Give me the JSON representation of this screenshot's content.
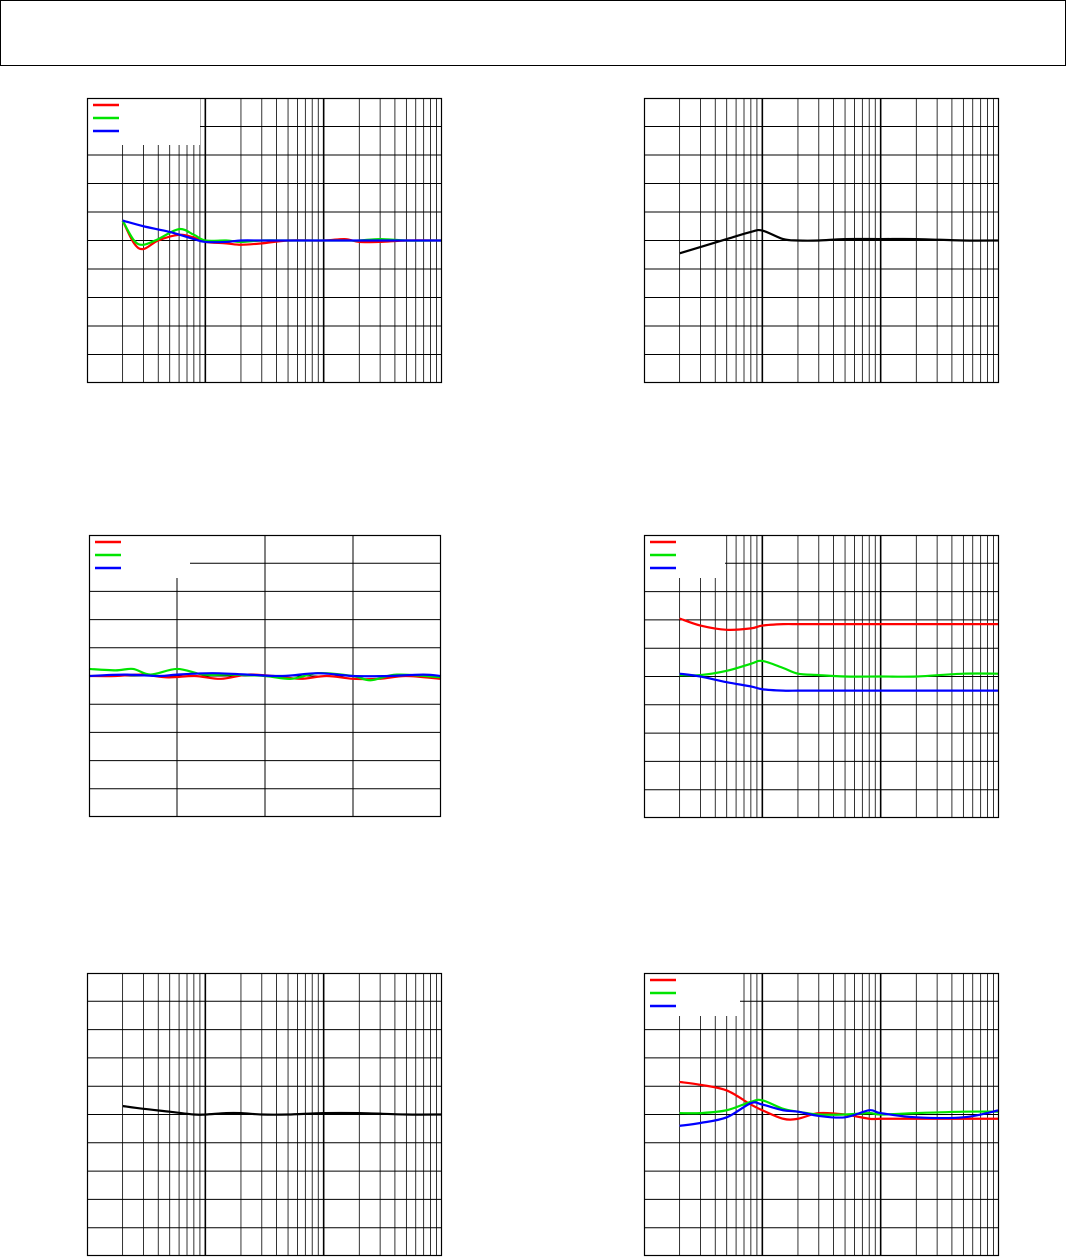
{
  "header": {
    "title": ""
  },
  "colors": {
    "red": "#ff0000",
    "green": "#00e400",
    "blue": "#0000ff",
    "black": "#000000"
  },
  "chart_data": [
    {
      "type": "line",
      "xscale": "log",
      "grid": true,
      "legend": "top-left",
      "xlim": [
        0.1,
        100
      ],
      "ylim": [
        -5,
        5
      ],
      "series": [
        {
          "color": "#ff0000",
          "x": [
            0.2,
            0.25,
            0.3,
            0.4,
            0.6,
            0.8,
            1,
            1.5,
            2,
            3,
            5,
            10,
            15,
            20,
            30,
            50,
            100
          ],
          "y": [
            0.7,
            -0.1,
            -0.3,
            0.0,
            0.2,
            0.1,
            -0.05,
            -0.1,
            -0.15,
            -0.1,
            0.0,
            0.0,
            0.05,
            -0.05,
            -0.05,
            0.0,
            0.0
          ]
        },
        {
          "color": "#00e400",
          "x": [
            0.2,
            0.25,
            0.3,
            0.4,
            0.6,
            0.8,
            1,
            1.5,
            2,
            3,
            5,
            10,
            15,
            20,
            30,
            50,
            100
          ],
          "y": [
            0.7,
            0.0,
            -0.15,
            0.05,
            0.4,
            0.2,
            0.0,
            0.0,
            -0.05,
            0.0,
            0.0,
            0.0,
            0.0,
            0.0,
            0.05,
            0.0,
            0.0
          ]
        },
        {
          "color": "#0000ff",
          "x": [
            0.2,
            0.3,
            0.5,
            0.8,
            1,
            1.5,
            2,
            3,
            5,
            10,
            20,
            50,
            100
          ],
          "y": [
            0.7,
            0.5,
            0.3,
            0.05,
            -0.05,
            -0.05,
            0.0,
            0.0,
            0.0,
            0.0,
            0.0,
            0.0,
            0.0
          ]
        }
      ]
    },
    {
      "type": "line",
      "xscale": "log",
      "grid": true,
      "xlim": [
        0.1,
        100
      ],
      "ylim": [
        -5,
        5
      ],
      "series": [
        {
          "color": "#000000",
          "x": [
            0.2,
            0.5,
            0.8,
            1,
            1.5,
            2,
            3,
            5,
            10,
            20,
            50,
            100
          ],
          "y": [
            -0.45,
            0.05,
            0.3,
            0.35,
            0.05,
            0.0,
            0.0,
            0.05,
            0.05,
            0.05,
            0.0,
            0.0
          ]
        }
      ]
    },
    {
      "type": "line",
      "xscale": "linear",
      "grid": true,
      "legend": "top-left",
      "xlim": [
        0,
        4
      ],
      "ylim": [
        -5,
        5
      ],
      "series": [
        {
          "color": "#ff0000",
          "x": [
            0,
            0.3,
            0.6,
            0.9,
            1.2,
            1.5,
            1.8,
            2.1,
            2.4,
            2.7,
            3.0,
            3.3,
            3.6,
            4.0
          ],
          "y": [
            0.0,
            0.0,
            0.05,
            -0.05,
            0.0,
            -0.1,
            0.05,
            0.0,
            -0.1,
            0.0,
            -0.1,
            -0.1,
            0.0,
            -0.1
          ]
        },
        {
          "color": "#00e400",
          "x": [
            0,
            0.3,
            0.5,
            0.7,
            1.0,
            1.3,
            1.6,
            2.0,
            2.3,
            2.6,
            3.0,
            3.2,
            3.5,
            4.0
          ],
          "y": [
            0.25,
            0.2,
            0.25,
            0.05,
            0.25,
            0.05,
            0.05,
            0.0,
            -0.1,
            0.1,
            0.0,
            -0.15,
            0.05,
            -0.05
          ]
        },
        {
          "color": "#0000ff",
          "x": [
            0,
            0.4,
            0.8,
            1.0,
            1.4,
            1.8,
            2.2,
            2.6,
            3.0,
            3.4,
            3.8,
            4.0
          ],
          "y": [
            0.0,
            0.05,
            0.0,
            0.05,
            0.1,
            0.05,
            0.0,
            0.1,
            0.0,
            0.0,
            0.05,
            0.0
          ]
        }
      ]
    },
    {
      "type": "line",
      "xscale": "log",
      "grid": true,
      "legend": "top-left",
      "xlim": [
        0.1,
        100
      ],
      "ylim": [
        -5,
        5
      ],
      "series": [
        {
          "color": "#ff0000",
          "x": [
            0.2,
            0.3,
            0.5,
            0.8,
            1,
            1.5,
            2,
            3,
            5,
            10,
            20,
            50,
            100
          ],
          "y": [
            2.05,
            1.8,
            1.65,
            1.7,
            1.8,
            1.85,
            1.85,
            1.85,
            1.85,
            1.85,
            1.85,
            1.85,
            1.85
          ]
        },
        {
          "color": "#00e400",
          "x": [
            0.2,
            0.3,
            0.5,
            0.8,
            1,
            1.5,
            2,
            3,
            5,
            10,
            20,
            50,
            100
          ],
          "y": [
            0.05,
            0.05,
            0.2,
            0.45,
            0.55,
            0.3,
            0.1,
            0.05,
            0.0,
            0.0,
            0.0,
            0.1,
            0.1
          ]
        },
        {
          "color": "#0000ff",
          "x": [
            0.2,
            0.3,
            0.5,
            0.8,
            1,
            1.5,
            2,
            3,
            5,
            10,
            20,
            50,
            100
          ],
          "y": [
            0.1,
            0.0,
            -0.2,
            -0.35,
            -0.45,
            -0.5,
            -0.5,
            -0.5,
            -0.5,
            -0.5,
            -0.5,
            -0.5,
            -0.5
          ]
        }
      ]
    },
    {
      "type": "line",
      "xscale": "log",
      "grid": true,
      "xlim": [
        0.1,
        100
      ],
      "ylim": [
        -5,
        5
      ],
      "series": [
        {
          "color": "#000000",
          "x": [
            0.2,
            0.3,
            0.5,
            0.8,
            1,
            1.5,
            2,
            3,
            5,
            10,
            20,
            50,
            100
          ],
          "y": [
            0.3,
            0.2,
            0.1,
            0.0,
            0.0,
            0.05,
            0.05,
            0.0,
            0.0,
            0.05,
            0.05,
            0.0,
            0.0
          ]
        }
      ]
    },
    {
      "type": "line",
      "xscale": "log",
      "grid": true,
      "legend": "top-left",
      "xlim": [
        0.1,
        100
      ],
      "ylim": [
        -5,
        5
      ],
      "series": [
        {
          "color": "#ff0000",
          "x": [
            0.2,
            0.3,
            0.5,
            0.8,
            1,
            1.5,
            2,
            3,
            5,
            8,
            10,
            20,
            50,
            100
          ],
          "y": [
            1.15,
            1.05,
            0.85,
            0.35,
            0.15,
            -0.15,
            -0.15,
            0.05,
            0.0,
            -0.15,
            -0.15,
            -0.15,
            -0.15,
            -0.15
          ]
        },
        {
          "color": "#00e400",
          "x": [
            0.2,
            0.3,
            0.5,
            0.8,
            1,
            1.5,
            2,
            3,
            5,
            8,
            10,
            20,
            50,
            100
          ],
          "y": [
            0.05,
            0.05,
            0.15,
            0.45,
            0.5,
            0.2,
            0.1,
            0.0,
            0.0,
            0.05,
            0.0,
            0.05,
            0.1,
            0.1
          ]
        },
        {
          "color": "#0000ff",
          "x": [
            0.2,
            0.3,
            0.5,
            0.8,
            1,
            1.5,
            2,
            3,
            5,
            8,
            10,
            20,
            50,
            100
          ],
          "y": [
            -0.4,
            -0.3,
            -0.1,
            0.4,
            0.35,
            0.15,
            0.1,
            -0.05,
            -0.1,
            0.15,
            0.05,
            -0.1,
            -0.1,
            0.15
          ]
        }
      ]
    }
  ]
}
